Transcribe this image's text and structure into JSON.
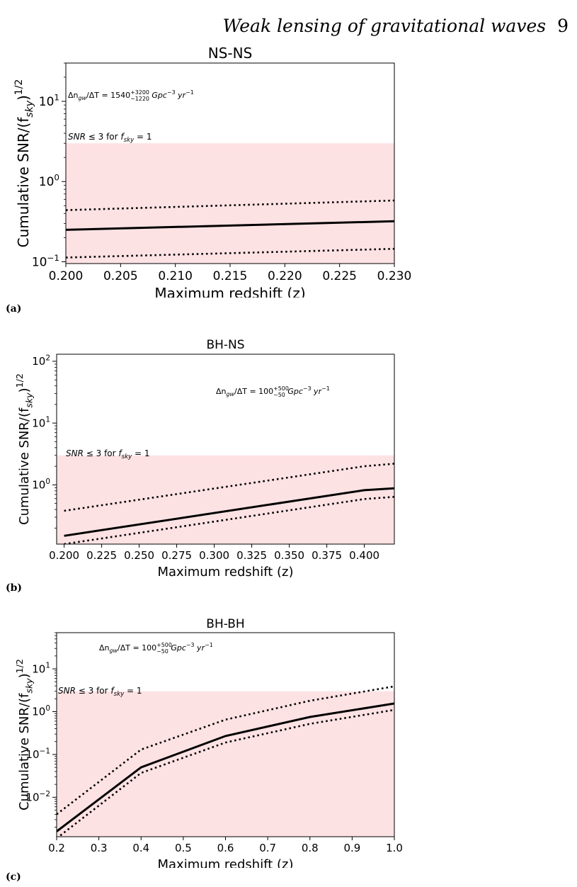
{
  "header": {
    "title": "Weak lensing of gravitational waves",
    "page_number": "9"
  },
  "legend_colors": {
    "band": "#fde2e4",
    "line": "#000000"
  },
  "chart_data": [
    {
      "type": "line",
      "panel_label": "(a)",
      "title": "NS-NS",
      "xlabel": "Maximum redshift (z)",
      "ylabel": "Cumulative SNR/(f",
      "ylabel_sub": "sky",
      "ylabel_sup": "1/2",
      "yscale": "log",
      "xlim": [
        0.2,
        0.23
      ],
      "ylim": [
        0.095,
        30
      ],
      "xticks": [
        0.2,
        0.205,
        0.21,
        0.215,
        0.22,
        0.225,
        0.23
      ],
      "xtick_labels": [
        "0.200",
        "0.205",
        "0.210",
        "0.215",
        "0.220",
        "0.225",
        "0.230"
      ],
      "yticks": [
        {
          "value": 0.1,
          "base": "10",
          "exp": "−1"
        },
        {
          "value": 1,
          "base": "10",
          "exp": "0"
        },
        {
          "value": 10,
          "base": "10",
          "exp": "1"
        }
      ],
      "band": {
        "y_max": 3
      },
      "band_label": {
        "pre": "SNR",
        "mid": " ≤ 3 for ",
        "f": "f",
        "fsub": "sky",
        "post": " = 1"
      },
      "rate_label": {
        "pre": "Δn",
        "sub1": "gw",
        "mid": "/ΔT = 1540",
        "sup2": "+3200",
        "sub2": "−1220",
        "post": " Gpc",
        "exp1": "−3",
        "yr": " yr",
        "exp2": "−1"
      },
      "series": [
        {
          "style": "solid",
          "x": [
            0.2,
            0.23
          ],
          "y": [
            0.25,
            0.32
          ]
        },
        {
          "style": "dotted",
          "x": [
            0.2,
            0.23
          ],
          "y": [
            0.44,
            0.58
          ]
        },
        {
          "style": "dotted",
          "x": [
            0.2,
            0.23
          ],
          "y": [
            0.113,
            0.145
          ]
        }
      ]
    },
    {
      "type": "line",
      "panel_label": "(b)",
      "title": "BH-NS",
      "xlabel": "Maximum redshift (z)",
      "ylabel": "Cumulative SNR/(f",
      "ylabel_sub": "sky",
      "ylabel_sup": "1/2",
      "yscale": "log",
      "xlim": [
        0.195,
        0.42
      ],
      "ylim": [
        0.11,
        130
      ],
      "xticks": [
        0.2,
        0.225,
        0.25,
        0.275,
        0.3,
        0.325,
        0.35,
        0.375,
        0.4
      ],
      "xtick_labels": [
        "0.200",
        "0.225",
        "0.250",
        "0.275",
        "0.300",
        "0.325",
        "0.350",
        "0.375",
        "0.400"
      ],
      "yticks": [
        {
          "value": 1,
          "base": "10",
          "exp": "0"
        },
        {
          "value": 10,
          "base": "10",
          "exp": "1"
        },
        {
          "value": 100,
          "base": "10",
          "exp": "2"
        }
      ],
      "band": {
        "y_max": 3
      },
      "band_label": {
        "pre": "SNR",
        "mid": " ≤ 3 for ",
        "f": "f",
        "fsub": "sky",
        "post": " = 1"
      },
      "rate_label": {
        "pre": "Δn",
        "sub1": "gw",
        "mid": "/ΔT = 100",
        "sup2": "+500",
        "sub2": "−50",
        "post": " Gpc",
        "exp1": "−3",
        "yr": " yr",
        "exp2": "−1"
      },
      "series": [
        {
          "style": "solid",
          "x": [
            0.2,
            0.4,
            0.42
          ],
          "y": [
            0.15,
            0.82,
            0.88
          ]
        },
        {
          "style": "dotted",
          "x": [
            0.2,
            0.4,
            0.42
          ],
          "y": [
            0.38,
            2.0,
            2.2
          ]
        },
        {
          "style": "dotted",
          "x": [
            0.2,
            0.4,
            0.42
          ],
          "y": [
            0.11,
            0.59,
            0.64
          ]
        }
      ]
    },
    {
      "type": "line",
      "panel_label": "(c)",
      "title": "BH-BH",
      "xlabel": "Maximum redshift (z)",
      "ylabel": "Cumulative SNR/(f",
      "ylabel_sub": "sky",
      "ylabel_sup": "1/2",
      "yscale": "log",
      "xlim": [
        0.2,
        1.0
      ],
      "ylim": [
        0.0012,
        70
      ],
      "xticks": [
        0.2,
        0.3,
        0.4,
        0.5,
        0.6,
        0.7,
        0.8,
        0.9,
        1.0
      ],
      "xtick_labels": [
        "0.2",
        "0.3",
        "0.4",
        "0.5",
        "0.6",
        "0.7",
        "0.8",
        "0.9",
        "1.0"
      ],
      "yticks": [
        {
          "value": 0.01,
          "base": "10",
          "exp": "−2"
        },
        {
          "value": 0.1,
          "base": "10",
          "exp": "−1"
        },
        {
          "value": 1,
          "base": "10",
          "exp": "0"
        },
        {
          "value": 10,
          "base": "10",
          "exp": "1"
        }
      ],
      "band": {
        "y_max": 3
      },
      "band_label": {
        "pre": "SNR",
        "mid": " ≤ 3 for ",
        "f": "f",
        "fsub": "sky",
        "post": " = 1"
      },
      "rate_label": {
        "pre": "Δn",
        "sub1": "gw",
        "mid": "/ΔT = 100",
        "sup2": "+500",
        "sub2": "−50",
        "post": " Gpc",
        "exp1": "−3",
        "yr": " yr",
        "exp2": "−1"
      },
      "series": [
        {
          "style": "solid",
          "x": [
            0.2,
            0.4,
            0.6,
            0.8,
            1.0
          ],
          "y": [
            0.0016,
            0.05,
            0.27,
            0.75,
            1.55
          ]
        },
        {
          "style": "dotted",
          "x": [
            0.2,
            0.4,
            0.6,
            0.8,
            1.0
          ],
          "y": [
            0.004,
            0.13,
            0.65,
            1.8,
            3.9
          ]
        },
        {
          "style": "dotted",
          "x": [
            0.2,
            0.4,
            0.6,
            0.8,
            1.0
          ],
          "y": [
            0.0011,
            0.037,
            0.19,
            0.52,
            1.1
          ]
        }
      ]
    }
  ]
}
